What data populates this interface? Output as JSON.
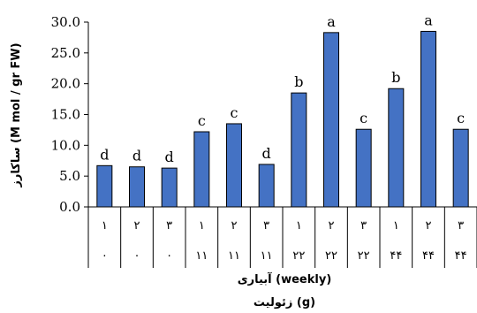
{
  "chart_data": {
    "type": "bar",
    "ylabel": "ساکارز (M mol / gr FW)",
    "xlabel_levels": [
      "آبیاری (weekly)",
      "زئولیت (g)"
    ],
    "ylim": [
      0,
      30
    ],
    "yticks": [
      "0.0",
      "5.0",
      "10.0",
      "15.0",
      "20.0",
      "25.0",
      "30.0"
    ],
    "grid": false,
    "legend": "none",
    "bar_color": "#4472C4",
    "categories": [
      {
        "irrigation": "۱",
        "zeolite": "۰"
      },
      {
        "irrigation": "۲",
        "zeolite": "۰"
      },
      {
        "irrigation": "۳",
        "zeolite": "۰"
      },
      {
        "irrigation": "۱",
        "zeolite": "۱۱"
      },
      {
        "irrigation": "۲",
        "zeolite": "۱۱"
      },
      {
        "irrigation": "۳",
        "zeolite": "۱۱"
      },
      {
        "irrigation": "۱",
        "zeolite": "۲۲"
      },
      {
        "irrigation": "۲",
        "zeolite": "۲۲"
      },
      {
        "irrigation": "۳",
        "zeolite": "۲۲"
      },
      {
        "irrigation": "۱",
        "zeolite": "۴۴"
      },
      {
        "irrigation": "۲",
        "zeolite": "۴۴"
      },
      {
        "irrigation": "۳",
        "zeolite": "۴۴"
      }
    ],
    "values": [
      6.7,
      6.5,
      6.3,
      12.2,
      13.5,
      6.9,
      18.5,
      28.3,
      12.6,
      19.2,
      28.5,
      12.6
    ],
    "letters": [
      "d",
      "d",
      "d",
      "c",
      "c",
      "d",
      "b",
      "a",
      "c",
      "b",
      "a",
      "c"
    ]
  }
}
